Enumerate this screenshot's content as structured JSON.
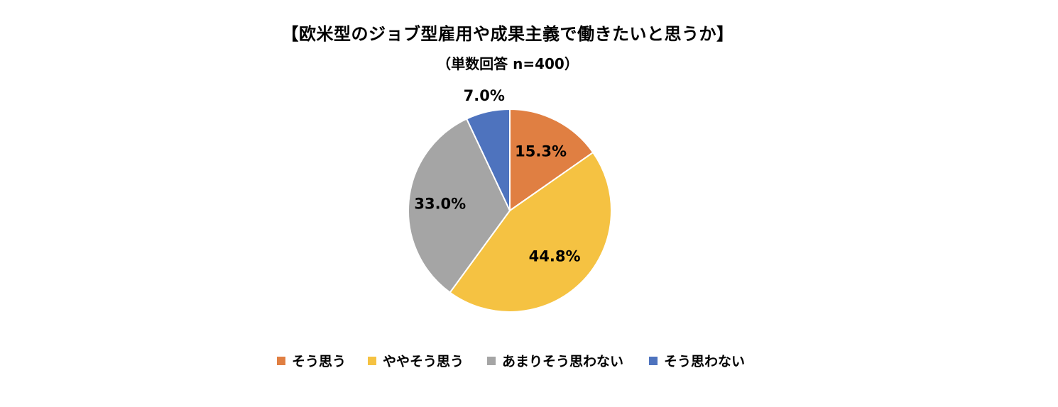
{
  "chart_data": {
    "type": "pie",
    "title": "【欧米型のジョブ型雇用や成果主義で働きたいと思うか】",
    "subtitle": "（単数回答 n=400）",
    "legend_position": "bottom",
    "slices": [
      {
        "label": "そう思う",
        "value": 15.3,
        "value_label": "15.3%",
        "color": "#E07F42"
      },
      {
        "label": "ややそう思う",
        "value": 44.8,
        "value_label": "44.8%",
        "color": "#F5C242"
      },
      {
        "label": "あまりそう思わない",
        "value": 33.0,
        "value_label": "33.0%",
        "color": "#A5A5A5"
      },
      {
        "label": "そう思わない",
        "value": 7.0,
        "value_label": "7.0%",
        "color": "#4E73BE"
      }
    ]
  }
}
